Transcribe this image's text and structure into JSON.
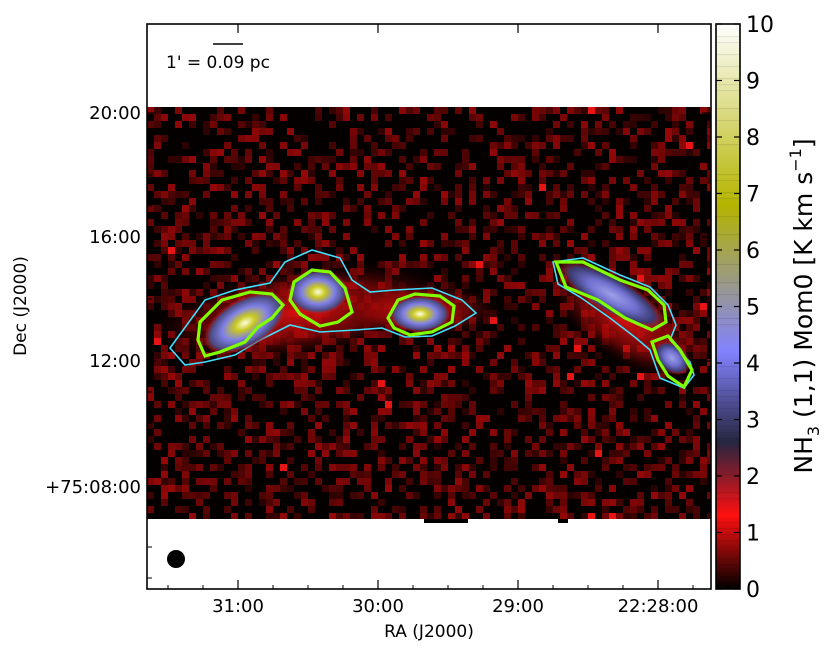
{
  "chart_data": {
    "type": "heatmap",
    "title": "",
    "xlabel": "RA (J2000)",
    "ylabel": "Dec (J2000)",
    "x_ticks": [
      "31:00",
      "30:00",
      "29:00",
      "22:28:00"
    ],
    "y_ticks": [
      "20:00",
      "16:00",
      "12:00",
      "+75:08:00"
    ],
    "colorbar": {
      "label_prefix": "NH",
      "label_sub": "3",
      "label_mid": " (1,1) Mom0 [K km s",
      "label_sup": "−1",
      "label_end": "]",
      "range": [
        0,
        10
      ],
      "ticks": [
        "0",
        "1",
        "2",
        "3",
        "4",
        "5",
        "6",
        "7",
        "8",
        "9",
        "10"
      ],
      "colormap_stops": [
        {
          "v": 0,
          "color": "#000000"
        },
        {
          "v": 1.3,
          "color": "#ff1010"
        },
        {
          "v": 2.6,
          "color": "#262640"
        },
        {
          "v": 4.2,
          "color": "#8282ff"
        },
        {
          "v": 6.8,
          "color": "#b4b400"
        },
        {
          "v": 10,
          "color": "#ffffff"
        }
      ]
    },
    "scale_bar": {
      "label_pre": "1' = ",
      "label_value": "0.09 pc"
    },
    "beam": "filled-circle",
    "cores": [
      {
        "peak_value": 9.3,
        "contour_color": "#7fff00"
      },
      {
        "peak_value": 8.4,
        "contour_color": "#7fff00"
      },
      {
        "peak_value": 8.0,
        "contour_color": "#7fff00"
      },
      {
        "peak_value": 5.6,
        "contour_color": "#7fff00"
      },
      {
        "peak_value": 3.0,
        "contour_color": "#7fff00"
      }
    ],
    "outer_contour_color": "#40e0ff"
  }
}
